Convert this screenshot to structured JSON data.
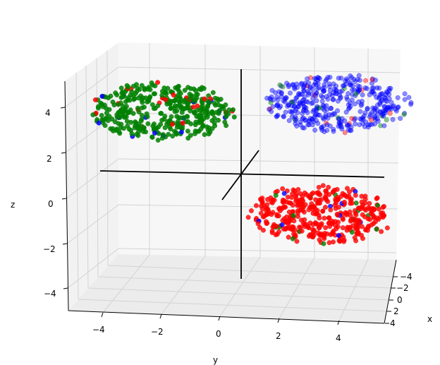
{
  "chart_data": {
    "type": "scatter",
    "projection": "3d",
    "title": "",
    "xlabel": "x",
    "ylabel": "y",
    "zlabel": "z",
    "xlim": [
      -5,
      5
    ],
    "ylim": [
      -5,
      5
    ],
    "zlim": [
      -5,
      5
    ],
    "x_ticks": [
      "−4",
      "−2",
      "0",
      "2",
      "4"
    ],
    "y_ticks": [
      "−4",
      "−2",
      "0",
      "2",
      "4"
    ],
    "z_ticks": [
      "−4",
      "−2",
      "0",
      "2",
      "4"
    ],
    "grid": true,
    "legend": "none",
    "colors": {
      "green": "#008000",
      "blue": "#0000ff",
      "red": "#ff0000",
      "axes_lines": "#000000",
      "pane": "#f2f2f2",
      "grid": "#d0d0d0"
    },
    "clusters": [
      {
        "color": "green",
        "center": {
          "x": -3,
          "y": -3,
          "z": 3.5
        },
        "spread": 1.6,
        "opacity": 0.85
      },
      {
        "color": "blue",
        "center": {
          "x": -3,
          "y": 3,
          "z": 4.0
        },
        "spread": 1.6,
        "opacity": 0.45
      },
      {
        "color": "red",
        "center": {
          "x": 3,
          "y": 3,
          "z": -2.5
        },
        "spread": 1.6,
        "opacity": 0.8
      }
    ],
    "origin_axes": {
      "x": [
        -5,
        5
      ],
      "y": [
        -5,
        5
      ],
      "z": [
        -5,
        5
      ]
    }
  }
}
